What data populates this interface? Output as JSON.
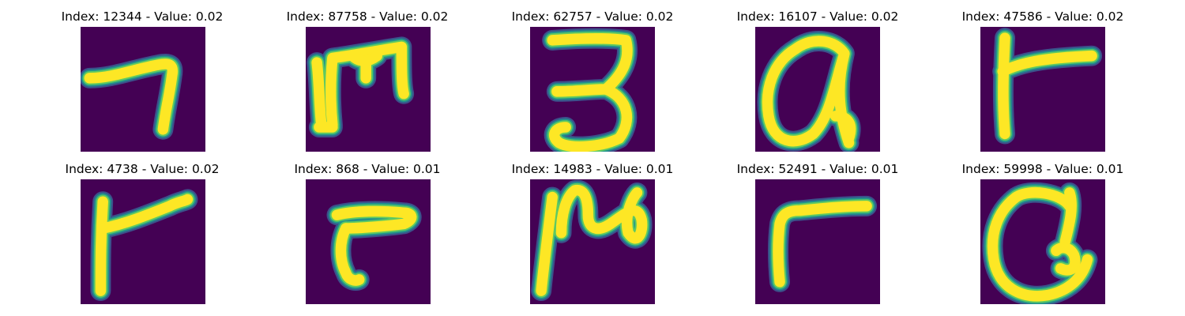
{
  "colors": {
    "background": "#ffffff",
    "cell_fill": "#440154",
    "stroke_core": "#fde725",
    "stroke_mid": "#5ec962",
    "stroke_edge": "#21918c",
    "stroke_halo": "#3b528b"
  },
  "images": [
    {
      "title": "Index: 12344 - Value: 0.02",
      "glyph": "seven"
    },
    {
      "title": "Index: 87758 - Value: 0.02",
      "glyph": "m-shape"
    },
    {
      "title": "Index: 62757 - Value: 0.02",
      "glyph": "three"
    },
    {
      "title": "Index: 16107 - Value: 0.02",
      "glyph": "a-loop"
    },
    {
      "title": "Index: 47586 - Value: 0.02",
      "glyph": "r-shape"
    },
    {
      "title": "Index: 4738 - Value: 0.02",
      "glyph": "r-wide"
    },
    {
      "title": "Index: 868 - Value: 0.01",
      "glyph": "r-small"
    },
    {
      "title": "Index: 14983 - Value: 0.01",
      "glyph": "n-curl"
    },
    {
      "title": "Index: 52491 - Value: 0.01",
      "glyph": "r-curve"
    },
    {
      "title": "Index: 59998 - Value: 0.01",
      "glyph": "a-round"
    }
  ]
}
